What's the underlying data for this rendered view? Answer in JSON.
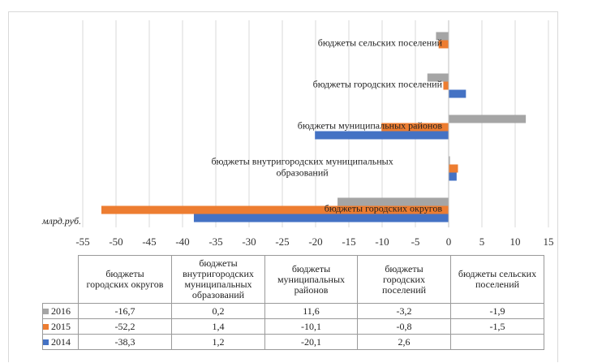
{
  "chart_data": {
    "type": "bar",
    "orientation": "horizontal",
    "unit_label": "млрд.руб.",
    "categories": [
      "бюджеты городских округов",
      "бюджеты внутригородских муниципальных образований",
      "бюджеты муниципальных районов",
      "бюджеты городских поселений",
      "бюджеты сельских поселений"
    ],
    "category_labels_in_plot": [
      [
        "бюджеты городских округов"
      ],
      [
        "бюджеты внутригородских муниципальных",
        "образований"
      ],
      [
        "бюджеты муниципальных районов"
      ],
      [
        "бюджеты городских поселений"
      ],
      [
        "бюджеты сельских поселений"
      ]
    ],
    "category_labels_in_table": [
      [
        "бюджеты",
        "городских округов"
      ],
      [
        "бюджеты",
        "внутригородских",
        "муниципальных",
        "образований"
      ],
      [
        "бюджеты",
        "муниципальных",
        "районов"
      ],
      [
        "бюджеты",
        "городских",
        "поселений"
      ],
      [
        "бюджеты сельских",
        "поселений"
      ]
    ],
    "series": [
      {
        "name": "2016",
        "color": "#a5a5a5",
        "values": [
          -16.7,
          0.2,
          11.6,
          -3.2,
          -1.9
        ],
        "labels": [
          "-16,7",
          "0,2",
          "11,6",
          "-3,2",
          "-1,9"
        ]
      },
      {
        "name": "2015",
        "color": "#ed7d31",
        "values": [
          -52.2,
          1.4,
          -10.1,
          -0.8,
          -1.5
        ],
        "labels": [
          "-52,2",
          "1,4",
          "-10,1",
          "-0,8",
          "-1,5"
        ]
      },
      {
        "name": "2014",
        "color": "#4472c4",
        "values": [
          -38.3,
          1.2,
          -20.1,
          2.6,
          null
        ],
        "labels": [
          "-38,3",
          "1,2",
          "-20,1",
          "2,6",
          ""
        ]
      }
    ],
    "xlim": [
      -55,
      15
    ],
    "xticks": [
      -55,
      -50,
      -45,
      -40,
      -35,
      -30,
      -25,
      -20,
      -15,
      -10,
      -5,
      0,
      5,
      10,
      15
    ],
    "grid": true,
    "legend": "bottom data table"
  }
}
